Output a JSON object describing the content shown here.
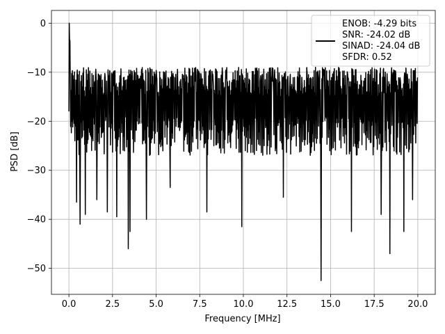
{
  "chart_data": {
    "type": "line",
    "title": "",
    "xlabel": "Frequency [MHz]",
    "ylabel": "PSD [dB]",
    "xlim": [
      -1,
      21
    ],
    "ylim": [
      -55.3,
      2.6
    ],
    "grid": true,
    "xticks": [
      0.0,
      2.5,
      5.0,
      7.5,
      10.0,
      12.5,
      15.0,
      17.5,
      20.0
    ],
    "xtick_labels": [
      "0.0",
      "2.5",
      "5.0",
      "7.5",
      "10.0",
      "12.5",
      "15.0",
      "17.5",
      "20.0"
    ],
    "yticks": [
      0,
      -10,
      -20,
      -30,
      -40,
      -50
    ],
    "ytick_labels": [
      "0",
      "−10",
      "−20",
      "−30",
      "−40",
      "−50"
    ],
    "legend_placement": "top-right",
    "legend": {
      "lines": [
        "ENOB: -4.29 bits",
        "SNR: -24.02 dB",
        "SINAD: -24.04 dB",
        "SFDR: 0.52"
      ]
    },
    "series": [
      {
        "color": "#000000",
        "x_range": [
          0,
          20
        ],
        "points": 1000,
        "typical_range": [
          -25,
          -9
        ],
        "peak": {
          "x": 0.0,
          "y": 0.0
        },
        "dips": [
          {
            "x": 0.45,
            "y": -36.5
          },
          {
            "x": 0.65,
            "y": -41.0
          },
          {
            "x": 0.95,
            "y": -39.0
          },
          {
            "x": 1.6,
            "y": -36.0
          },
          {
            "x": 2.2,
            "y": -38.5
          },
          {
            "x": 2.75,
            "y": -39.5
          },
          {
            "x": 3.4,
            "y": -46.0
          },
          {
            "x": 3.5,
            "y": -42.5
          },
          {
            "x": 4.45,
            "y": -40.0
          },
          {
            "x": 5.8,
            "y": -33.5
          },
          {
            "x": 7.9,
            "y": -38.5
          },
          {
            "x": 9.9,
            "y": -41.5
          },
          {
            "x": 12.3,
            "y": -35.5
          },
          {
            "x": 14.45,
            "y": -52.5
          },
          {
            "x": 16.2,
            "y": -42.5
          },
          {
            "x": 17.9,
            "y": -39.0
          },
          {
            "x": 18.4,
            "y": -47.0
          },
          {
            "x": 19.2,
            "y": -42.5
          },
          {
            "x": 19.7,
            "y": -36.0
          }
        ]
      }
    ]
  }
}
